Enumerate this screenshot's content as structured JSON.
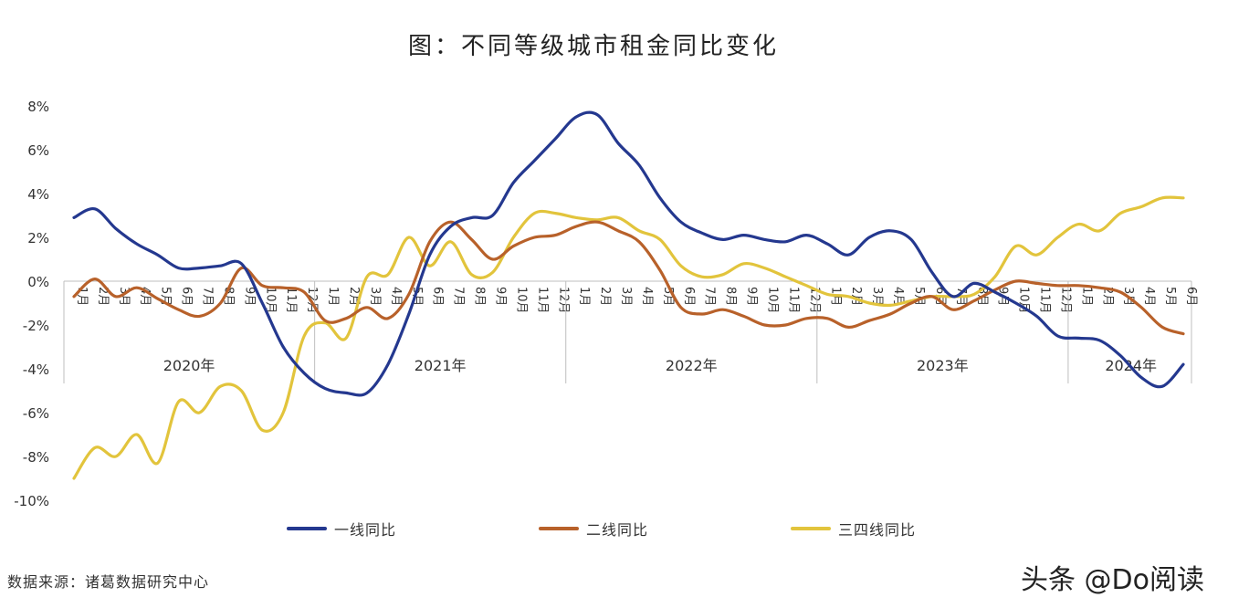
{
  "title": "图：不同等级城市租金同比变化",
  "source": "数据来源：诸葛数据研究中心",
  "watermark": "头条 @Do阅读",
  "chart_data": {
    "type": "line",
    "title": "图：不同等级城市租金同比变化",
    "ylim": [
      -10,
      8
    ],
    "yticks": [
      "8%",
      "6%",
      "4%",
      "2%",
      "0%",
      "-2%",
      "-4%",
      "-6%",
      "-8%",
      "-10%"
    ],
    "ytick_values": [
      8,
      6,
      4,
      2,
      0,
      -2,
      -4,
      -6,
      -8,
      -10
    ],
    "grid": false,
    "legend_position": "bottom",
    "years": [
      {
        "label": "2020年",
        "months": 12
      },
      {
        "label": "2021年",
        "months": 12
      },
      {
        "label": "2022年",
        "months": 12
      },
      {
        "label": "2023年",
        "months": 12
      },
      {
        "label": "2024年",
        "months": 6
      }
    ],
    "x": [
      "1月",
      "2月",
      "3月",
      "4月",
      "5月",
      "6月",
      "7月",
      "8月",
      "9月",
      "10月",
      "11月",
      "12月",
      "1月",
      "2月",
      "3月",
      "4月",
      "5月",
      "6月",
      "7月",
      "8月",
      "9月",
      "10月",
      "11月",
      "12月",
      "1月",
      "2月",
      "3月",
      "4月",
      "5月",
      "6月",
      "7月",
      "8月",
      "9月",
      "10月",
      "11月",
      "12月",
      "1月",
      "2月",
      "3月",
      "4月",
      "5月",
      "6月",
      "7月",
      "8月",
      "9月",
      "10月",
      "11月",
      "12月",
      "1月",
      "2月",
      "3月",
      "4月",
      "5月",
      "6月"
    ],
    "series": [
      {
        "name": "一线同比",
        "color": "#24388f",
        "values": [
          2.9,
          3.3,
          2.4,
          1.7,
          1.2,
          0.6,
          0.6,
          0.7,
          0.8,
          -1.0,
          -3.0,
          -4.2,
          -4.9,
          -5.1,
          -5.1,
          -3.8,
          -1.5,
          1.2,
          2.5,
          2.9,
          3.0,
          4.5,
          5.5,
          6.5,
          7.5,
          7.6,
          6.3,
          5.3,
          3.8,
          2.7,
          2.2,
          1.9,
          2.1,
          1.9,
          1.8,
          2.1,
          1.7,
          1.2,
          2.0,
          2.3,
          1.9,
          0.4,
          -0.7,
          -0.1,
          -0.5,
          -1.0,
          -1.6,
          -2.5,
          -2.6,
          -2.7,
          -3.4,
          -4.4,
          -4.8,
          -3.8
        ]
      },
      {
        "name": "二线同比",
        "color": "#b8612a",
        "values": [
          -0.7,
          0.1,
          -0.7,
          -0.3,
          -0.8,
          -1.3,
          -1.6,
          -1.0,
          0.6,
          -0.2,
          -0.3,
          -0.5,
          -1.8,
          -1.7,
          -1.2,
          -1.7,
          -0.6,
          1.8,
          2.7,
          1.9,
          1.0,
          1.6,
          2.0,
          2.1,
          2.5,
          2.7,
          2.3,
          1.8,
          0.5,
          -1.2,
          -1.5,
          -1.3,
          -1.6,
          -2.0,
          -2.0,
          -1.7,
          -1.7,
          -2.1,
          -1.8,
          -1.5,
          -1.0,
          -0.7,
          -1.3,
          -0.9,
          -0.4,
          0.0,
          -0.1,
          -0.2,
          -0.2,
          -0.3,
          -0.5,
          -1.2,
          -2.1,
          -2.4
        ]
      },
      {
        "name": "三四线同比",
        "color": "#e2c43c",
        "values": [
          -9.0,
          -7.6,
          -8.0,
          -7.0,
          -8.3,
          -5.5,
          -6.0,
          -4.8,
          -5.0,
          -6.8,
          -6.0,
          -2.5,
          -1.9,
          -2.6,
          0.2,
          0.3,
          2.0,
          0.7,
          1.8,
          0.3,
          0.4,
          2.0,
          3.1,
          3.1,
          2.9,
          2.8,
          2.9,
          2.3,
          1.9,
          0.7,
          0.2,
          0.3,
          0.8,
          0.6,
          0.2,
          -0.2,
          -0.6,
          -0.7,
          -1.0,
          -1.1,
          -0.9,
          -0.7,
          -0.7,
          -0.6,
          0.2,
          1.6,
          1.2,
          2.0,
          2.6,
          2.3,
          3.1,
          3.4,
          3.8,
          3.8
        ]
      }
    ]
  }
}
